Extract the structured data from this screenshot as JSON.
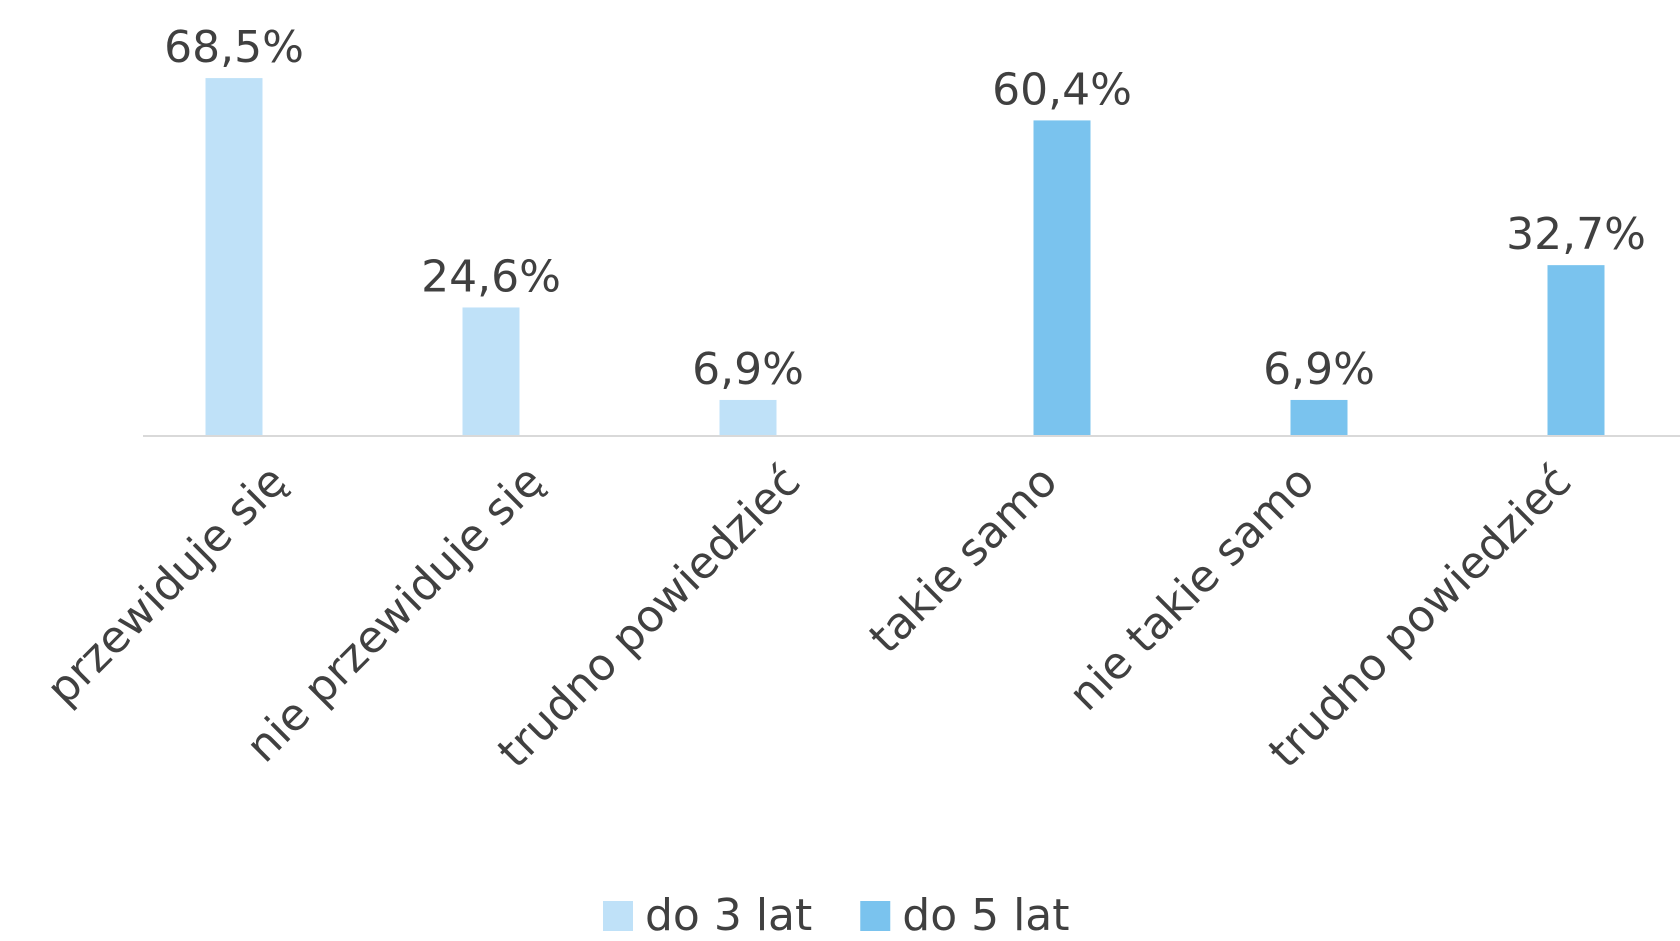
{
  "chart_data": {
    "type": "bar",
    "categories": [
      "przewiduje się",
      "nie przewiduje się",
      "trudno powiedzieć",
      "takie samo",
      "nie takie samo",
      "trudno powiedzieć"
    ],
    "series": [
      {
        "name": "do 3 lat",
        "color": "#bfe1f8",
        "values": [
          68.5,
          24.6,
          6.9,
          null,
          null,
          null
        ],
        "value_labels": [
          "68,5%",
          "24,6%",
          "6,9%",
          null,
          null,
          null
        ]
      },
      {
        "name": "do 5 lat",
        "color": "#7ac3ee",
        "values": [
          null,
          null,
          null,
          60.4,
          6.9,
          32.7
        ],
        "value_labels": [
          null,
          null,
          null,
          "60,4%",
          "6,9%",
          "32,7%"
        ]
      }
    ],
    "ylim": [
      0,
      80
    ]
  }
}
